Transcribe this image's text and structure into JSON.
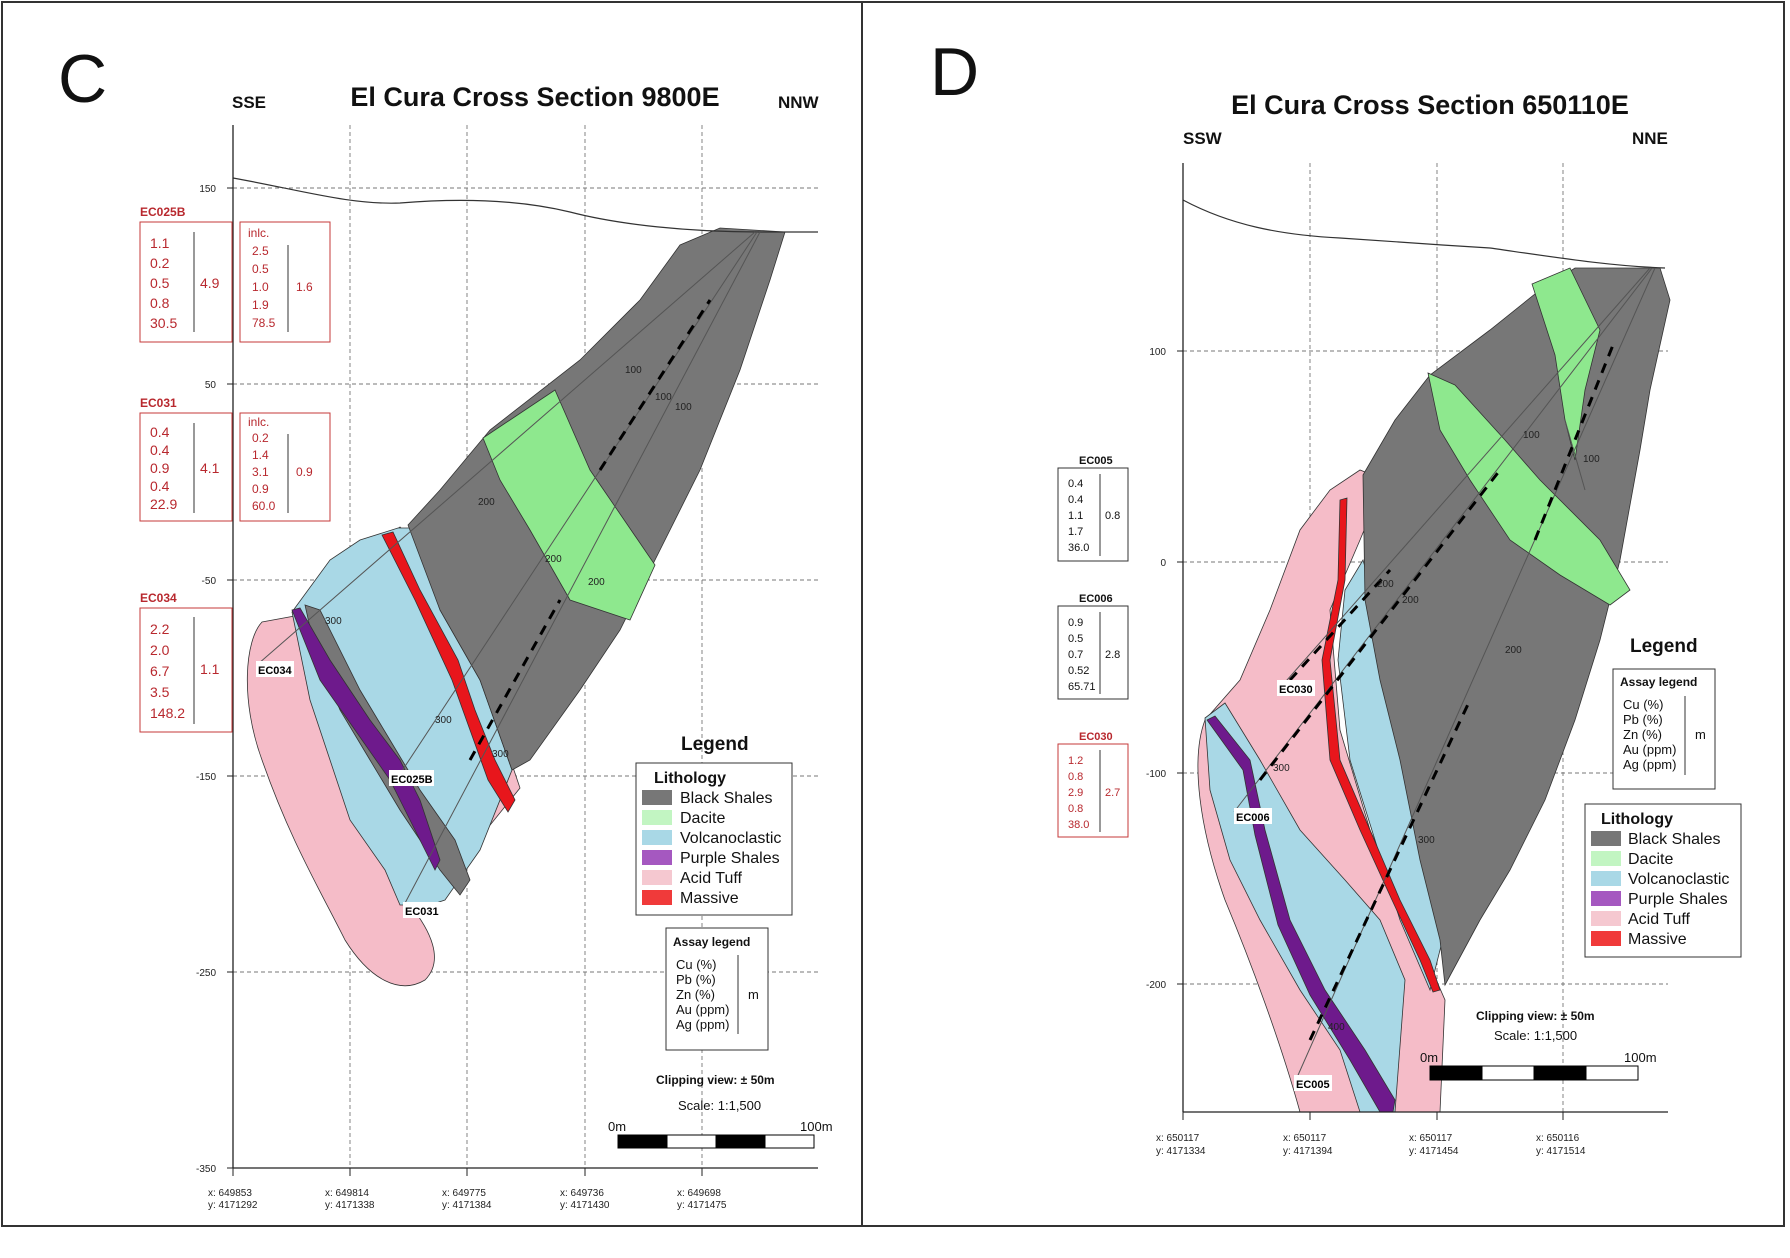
{
  "colors": {
    "black_shales": "#777777",
    "dacite": "#8ee88e",
    "volcanoclastic": "#a9d8e6",
    "purple_shales": "#6e1a8c",
    "acid_tuff": "#f5bcc8",
    "massive": "#e8161c",
    "assay_red": "#b8282e"
  },
  "panel_c": {
    "letter": "C",
    "title": "El Cura Cross Section 9800E",
    "left_dir": "SSE",
    "right_dir": "NNW",
    "y_ticks": [
      "150",
      "50",
      "-50",
      "-150",
      "-250",
      "-350"
    ],
    "x_coords": [
      {
        "x": "x: 649853",
        "y": "y: 4171292"
      },
      {
        "x": "x: 649814",
        "y": "y: 4171338"
      },
      {
        "x": "x: 649775",
        "y": "y: 4171384"
      },
      {
        "x": "x: 649736",
        "y": "y: 4171430"
      },
      {
        "x": "x: 649698",
        "y": "y: 4171475"
      }
    ],
    "depth_marks": [
      "100",
      "100",
      "100",
      "200",
      "200",
      "200",
      "300",
      "300",
      "300"
    ],
    "assays": [
      {
        "hole": "EC025B",
        "values": [
          "1.1",
          "0.2",
          "0.5",
          "0.8",
          "30.5"
        ],
        "total": "4.9",
        "incl_label": "inlc.",
        "incl_values": [
          "2.5",
          "0.5",
          "1.0",
          "1.9",
          "78.5"
        ],
        "incl_total": "1.6"
      },
      {
        "hole": "EC031",
        "values": [
          "0.4",
          "0.4",
          "0.9",
          "0.4",
          "22.9"
        ],
        "total": "4.1",
        "incl_label": "inlc.",
        "incl_values": [
          "0.2",
          "1.4",
          "3.1",
          "0.9",
          "60.0"
        ],
        "incl_total": "0.9"
      },
      {
        "hole": "EC034",
        "values": [
          "2.2",
          "2.0",
          "6.7",
          "3.5",
          "148.2"
        ],
        "total": "1.1"
      }
    ],
    "hole_labels": [
      "EC034",
      "EC025B",
      "EC031"
    ],
    "legend": {
      "title": "Legend",
      "lithology_title": "Lithology",
      "items": [
        "Black Shales",
        "Dacite",
        "Volcanoclastic",
        "Purple Shales",
        "Acid Tuff",
        "Massive"
      ]
    },
    "assay_legend": {
      "title": "Assay legend",
      "items": [
        "Cu (%)",
        "Pb (%)",
        "Zn (%)",
        "Au (ppm)",
        "Ag (ppm)"
      ],
      "unit": "m"
    },
    "clipping": "Clipping view: ± 50m",
    "scale": "Scale: 1:1,500",
    "scalebar": {
      "start": "0m",
      "end": "100m"
    }
  },
  "panel_d": {
    "letter": "D",
    "title": "El Cura Cross Section 650110E",
    "left_dir": "SSW",
    "right_dir": "NNE",
    "y_ticks": [
      "100",
      "0",
      "-100",
      "-200"
    ],
    "x_coords": [
      {
        "x": "x: 650117",
        "y": "y: 4171334"
      },
      {
        "x": "x: 650117",
        "y": "y: 4171394"
      },
      {
        "x": "x: 650117",
        "y": "y: 4171454"
      },
      {
        "x": "x: 650116",
        "y": "y: 4171514"
      }
    ],
    "depth_marks": [
      "100",
      "100",
      "200",
      "200",
      "200",
      "300",
      "300",
      "400"
    ],
    "assays": [
      {
        "hole": "EC005",
        "values": [
          "0.4",
          "0.4",
          "1.1",
          "1.7",
          "36.0"
        ],
        "total": "0.8",
        "color": "black"
      },
      {
        "hole": "EC006",
        "values": [
          "0.9",
          "0.5",
          "0.7",
          "0.52",
          "65.71"
        ],
        "total": "2.8",
        "color": "black"
      },
      {
        "hole": "EC030",
        "values": [
          "1.2",
          "0.8",
          "2.9",
          "0.8",
          "38.0"
        ],
        "total": "2.7",
        "color": "red"
      }
    ],
    "hole_labels": [
      "EC030",
      "EC006",
      "EC005"
    ],
    "legend": {
      "title": "Legend",
      "lithology_title": "Lithology",
      "items": [
        "Black Shales",
        "Dacite",
        "Volcanoclastic",
        "Purple Shales",
        "Acid Tuff",
        "Massive"
      ]
    },
    "assay_legend": {
      "title": "Assay legend",
      "items": [
        "Cu (%)",
        "Pb (%)",
        "Zn (%)",
        "Au (ppm)",
        "Ag (ppm)"
      ],
      "unit": "m"
    },
    "clipping": "Clipping view: ± 50m",
    "scale": "Scale: 1:1,500",
    "scalebar": {
      "start": "0m",
      "end": "100m"
    }
  }
}
